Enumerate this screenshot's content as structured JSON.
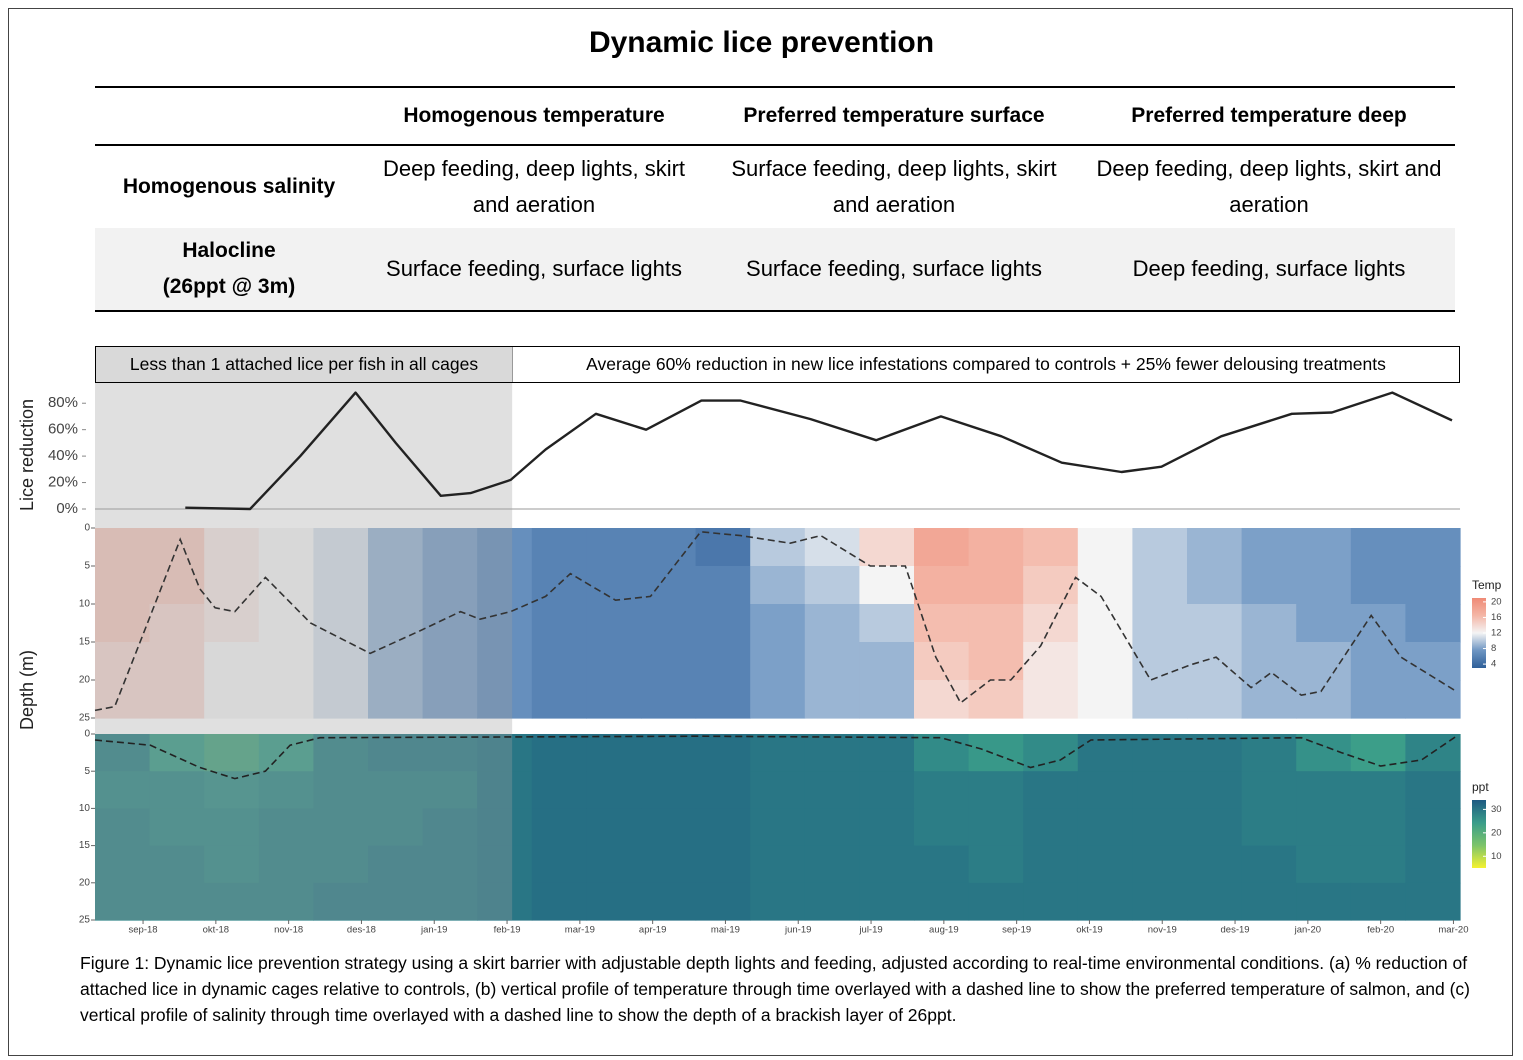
{
  "title": "Dynamic lice prevention",
  "table": {
    "columns": [
      "Homogenous temperature",
      "Preferred temperature surface",
      "Preferred temperature deep"
    ],
    "rows": [
      [
        "Homogenous salinity",
        "Deep feeding, deep lights, skirt and aeration",
        "Surface feeding, deep lights, skirt and aeration",
        "Deep feeding, deep lights, skirt and aeration"
      ],
      [
        "Halocline\n(26ppt @ 3m)",
        "Surface feeding, surface lights",
        "Surface feeding, surface lights",
        "Deep feeding, surface lights"
      ]
    ]
  },
  "banners": [
    "Less than 1 attached lice per fish in all cages",
    "Average 60% reduction in new lice infestations compared to controls + 25% fewer delousing treatments"
  ],
  "chart_data": [
    {
      "type": "line",
      "ylabel": "Lice reduction",
      "xlim": [
        -0.66,
        18.09
      ],
      "ylim": [
        0,
        90
      ],
      "yticks": [
        {
          "value": 0,
          "label": "0%"
        },
        {
          "value": 20,
          "label": "20%"
        },
        {
          "value": 40,
          "label": "40%"
        },
        {
          "value": 60,
          "label": "60%"
        },
        {
          "value": 80,
          "label": "80%"
        }
      ],
      "highlight": [
        -0.66,
        5.07
      ],
      "highlight_color": "#9e9e9e",
      "color": "#222222",
      "x": [
        0.58,
        1.47,
        2.16,
        2.92,
        3.47,
        4.09,
        4.5,
        5.05,
        5.53,
        6.22,
        6.91,
        7.67,
        8.21,
        9.17,
        10.07,
        10.96,
        11.79,
        12.62,
        13.44,
        13.99,
        14.81,
        15.78,
        16.33,
        17.16,
        17.98
      ],
      "values": [
        1,
        0,
        40,
        88,
        50,
        10,
        12,
        22,
        45,
        72,
        60,
        82,
        82,
        68,
        52,
        70,
        55,
        35,
        28,
        32,
        55,
        72,
        73,
        88,
        67
      ]
    },
    {
      "type": "heatmap",
      "ylabel": "Depth (m)",
      "xlim": [
        -0.66,
        18.09
      ],
      "ylim": [
        0,
        25
      ],
      "yticks": [
        0,
        5,
        10,
        15,
        20,
        25
      ],
      "xbins": [
        -0.66,
        0.09,
        0.84,
        1.59,
        2.34,
        3.09,
        3.84,
        4.59,
        5.34,
        6.09,
        6.84,
        7.59,
        8.34,
        9.09,
        9.84,
        10.59,
        11.34,
        12.09,
        12.84,
        13.59,
        14.34,
        15.09,
        15.84,
        16.59,
        17.34,
        18.09
      ],
      "ybins": [
        0,
        5,
        10,
        15,
        20,
        25
      ],
      "values": [
        [
          15,
          15,
          13,
          12,
          11,
          9,
          8,
          7,
          6,
          6,
          6,
          5,
          10,
          11,
          14,
          18,
          17,
          16,
          12,
          10,
          9,
          8,
          8,
          7,
          7
        ],
        [
          15,
          15,
          13,
          12,
          11,
          9,
          8,
          7,
          6,
          6,
          6,
          6,
          9,
          10,
          12,
          17,
          17,
          15,
          12,
          10,
          9,
          8,
          8,
          7,
          7
        ],
        [
          15,
          14,
          13,
          12,
          11,
          9,
          8,
          7,
          6,
          6,
          6,
          6,
          8,
          9,
          10,
          16,
          16,
          14,
          12,
          10,
          10,
          9,
          8,
          8,
          7
        ],
        [
          14,
          14,
          12,
          12,
          11,
          9,
          8,
          7,
          6,
          6,
          6,
          6,
          8,
          9,
          9,
          15,
          16,
          13,
          12,
          10,
          10,
          9,
          9,
          8,
          8
        ],
        [
          14,
          14,
          12,
          12,
          11,
          9,
          8,
          7,
          6,
          6,
          6,
          6,
          8,
          9,
          9,
          14,
          15,
          13,
          12,
          10,
          10,
          9,
          9,
          8,
          8
        ]
      ],
      "colorbar": {
        "title": "Temp",
        "range": [
          3,
          21
        ],
        "ticks": [
          20,
          16,
          12,
          8,
          4
        ],
        "colors": [
          "#2f5f98",
          "#6d95c2",
          "#f4f4f4",
          "#f4b6a6",
          "#ef8a76"
        ]
      },
      "line": {
        "color": "#333333",
        "x": [
          -0.66,
          -0.39,
          -0.04,
          0.51,
          0.78,
          0.99,
          1.26,
          1.68,
          2.3,
          3.12,
          3.81,
          4.36,
          4.63,
          5.05,
          5.53,
          5.87,
          6.49,
          6.97,
          7.66,
          8.21,
          8.89,
          9.31,
          9.99,
          10.47,
          10.89,
          11.23,
          11.64,
          11.92,
          12.33,
          12.81,
          13.16,
          13.84,
          14.39,
          14.74,
          15.22,
          15.5,
          15.91,
          16.18,
          16.87,
          17.28,
          18.04
        ],
        "values": [
          24,
          23.5,
          15,
          1.5,
          8,
          10.5,
          11,
          6.5,
          12.5,
          16.5,
          13.5,
          11,
          12,
          11,
          9,
          6,
          9.5,
          9,
          0.5,
          1,
          2,
          1,
          5,
          5,
          17,
          23,
          20,
          20,
          15.5,
          6.5,
          9,
          20,
          18,
          17,
          21,
          19,
          22,
          21.5,
          11.5,
          17,
          21.5
        ]
      }
    },
    {
      "type": "heatmap",
      "xlim": [
        -0.66,
        18.09
      ],
      "ylim": [
        0,
        25
      ],
      "yticks": [
        0,
        5,
        10,
        15,
        20,
        25
      ],
      "xticks": [
        {
          "value": 0,
          "label": "sep-18"
        },
        {
          "value": 1,
          "label": "okt-18"
        },
        {
          "value": 2,
          "label": "nov-18"
        },
        {
          "value": 3,
          "label": "des-18"
        },
        {
          "value": 4,
          "label": "jan-19"
        },
        {
          "value": 5,
          "label": "feb-19"
        },
        {
          "value": 6,
          "label": "mar-19"
        },
        {
          "value": 7,
          "label": "apr-19"
        },
        {
          "value": 8,
          "label": "mai-19"
        },
        {
          "value": 9,
          "label": "jun-19"
        },
        {
          "value": 10,
          "label": "jul-19"
        },
        {
          "value": 11,
          "label": "aug-19"
        },
        {
          "value": 12,
          "label": "sep-19"
        },
        {
          "value": 13,
          "label": "okt-19"
        },
        {
          "value": 14,
          "label": "nov-19"
        },
        {
          "value": 15,
          "label": "des-19"
        },
        {
          "value": 16,
          "label": "jan-20"
        },
        {
          "value": 17,
          "label": "feb-20"
        },
        {
          "value": 18,
          "label": "mar-20"
        }
      ],
      "xbins": [
        -0.66,
        0.09,
        0.84,
        1.59,
        2.34,
        3.09,
        3.84,
        4.59,
        5.34,
        6.09,
        6.84,
        7.59,
        8.34,
        9.09,
        9.84,
        10.59,
        11.34,
        12.09,
        12.84,
        13.59,
        14.34,
        15.09,
        15.84,
        16.59,
        17.34,
        18.09
      ],
      "ybins": [
        0,
        5,
        10,
        15,
        20,
        25
      ],
      "values": [
        [
          28,
          24,
          22,
          24,
          28,
          29,
          29,
          30,
          31,
          31,
          31,
          31,
          30,
          30,
          30,
          27,
          25,
          27,
          30,
          30,
          30,
          29,
          26,
          24,
          28
        ],
        [
          27,
          27,
          26,
          27,
          28,
          28,
          28,
          30,
          31,
          31,
          31,
          31,
          30,
          30,
          30,
          29,
          29,
          30,
          30,
          30,
          30,
          29,
          29,
          29,
          30
        ],
        [
          28,
          27,
          27,
          28,
          28,
          28,
          29,
          30,
          31,
          31,
          31,
          31,
          30,
          30,
          30,
          29,
          29,
          30,
          30,
          30,
          30,
          29,
          29,
          29,
          30
        ],
        [
          28,
          28,
          27,
          28,
          28,
          29,
          29,
          30,
          31,
          31,
          31,
          31,
          30,
          30,
          30,
          30,
          29,
          30,
          30,
          30,
          30,
          30,
          29,
          29,
          30
        ],
        [
          28,
          28,
          28,
          28,
          29,
          29,
          29,
          30,
          31,
          31,
          31,
          31,
          30,
          30,
          30,
          30,
          30,
          30,
          30,
          30,
          30,
          30,
          30,
          30,
          30
        ]
      ],
      "colorbar": {
        "title": "ppt",
        "range": [
          5,
          34
        ],
        "ticks": [
          30,
          20,
          10
        ],
        "colors": [
          "#f5f230",
          "#7cc46a",
          "#3a9d8a",
          "#1d5a82"
        ]
      },
      "line": {
        "color": "#222222",
        "x": [
          -0.66,
          0.1,
          0.78,
          1.26,
          1.68,
          2.02,
          2.43,
          7.66,
          10.96,
          11.51,
          12.19,
          12.6,
          13.02,
          15.91,
          16.46,
          17.0,
          17.56,
          18.04
        ],
        "values": [
          0.8,
          1.5,
          4.5,
          6,
          5,
          1.5,
          0.5,
          0.3,
          0.5,
          2,
          4.5,
          3.5,
          0.8,
          0.5,
          2.5,
          4.3,
          3.5,
          0.3
        ]
      }
    }
  ],
  "caption": "Figure 1: Dynamic lice prevention strategy using a skirt barrier with adjustable depth lights and feeding, adjusted according to real-time environmental conditions. (a) % reduction of attached lice in dynamic cages relative to controls, (b) vertical profile of temperature through time overlayed with a dashed line to show the preferred temperature of salmon, and (c) vertical profile of salinity through time overlayed with a dashed line to show the depth of a brackish layer of 26ppt."
}
